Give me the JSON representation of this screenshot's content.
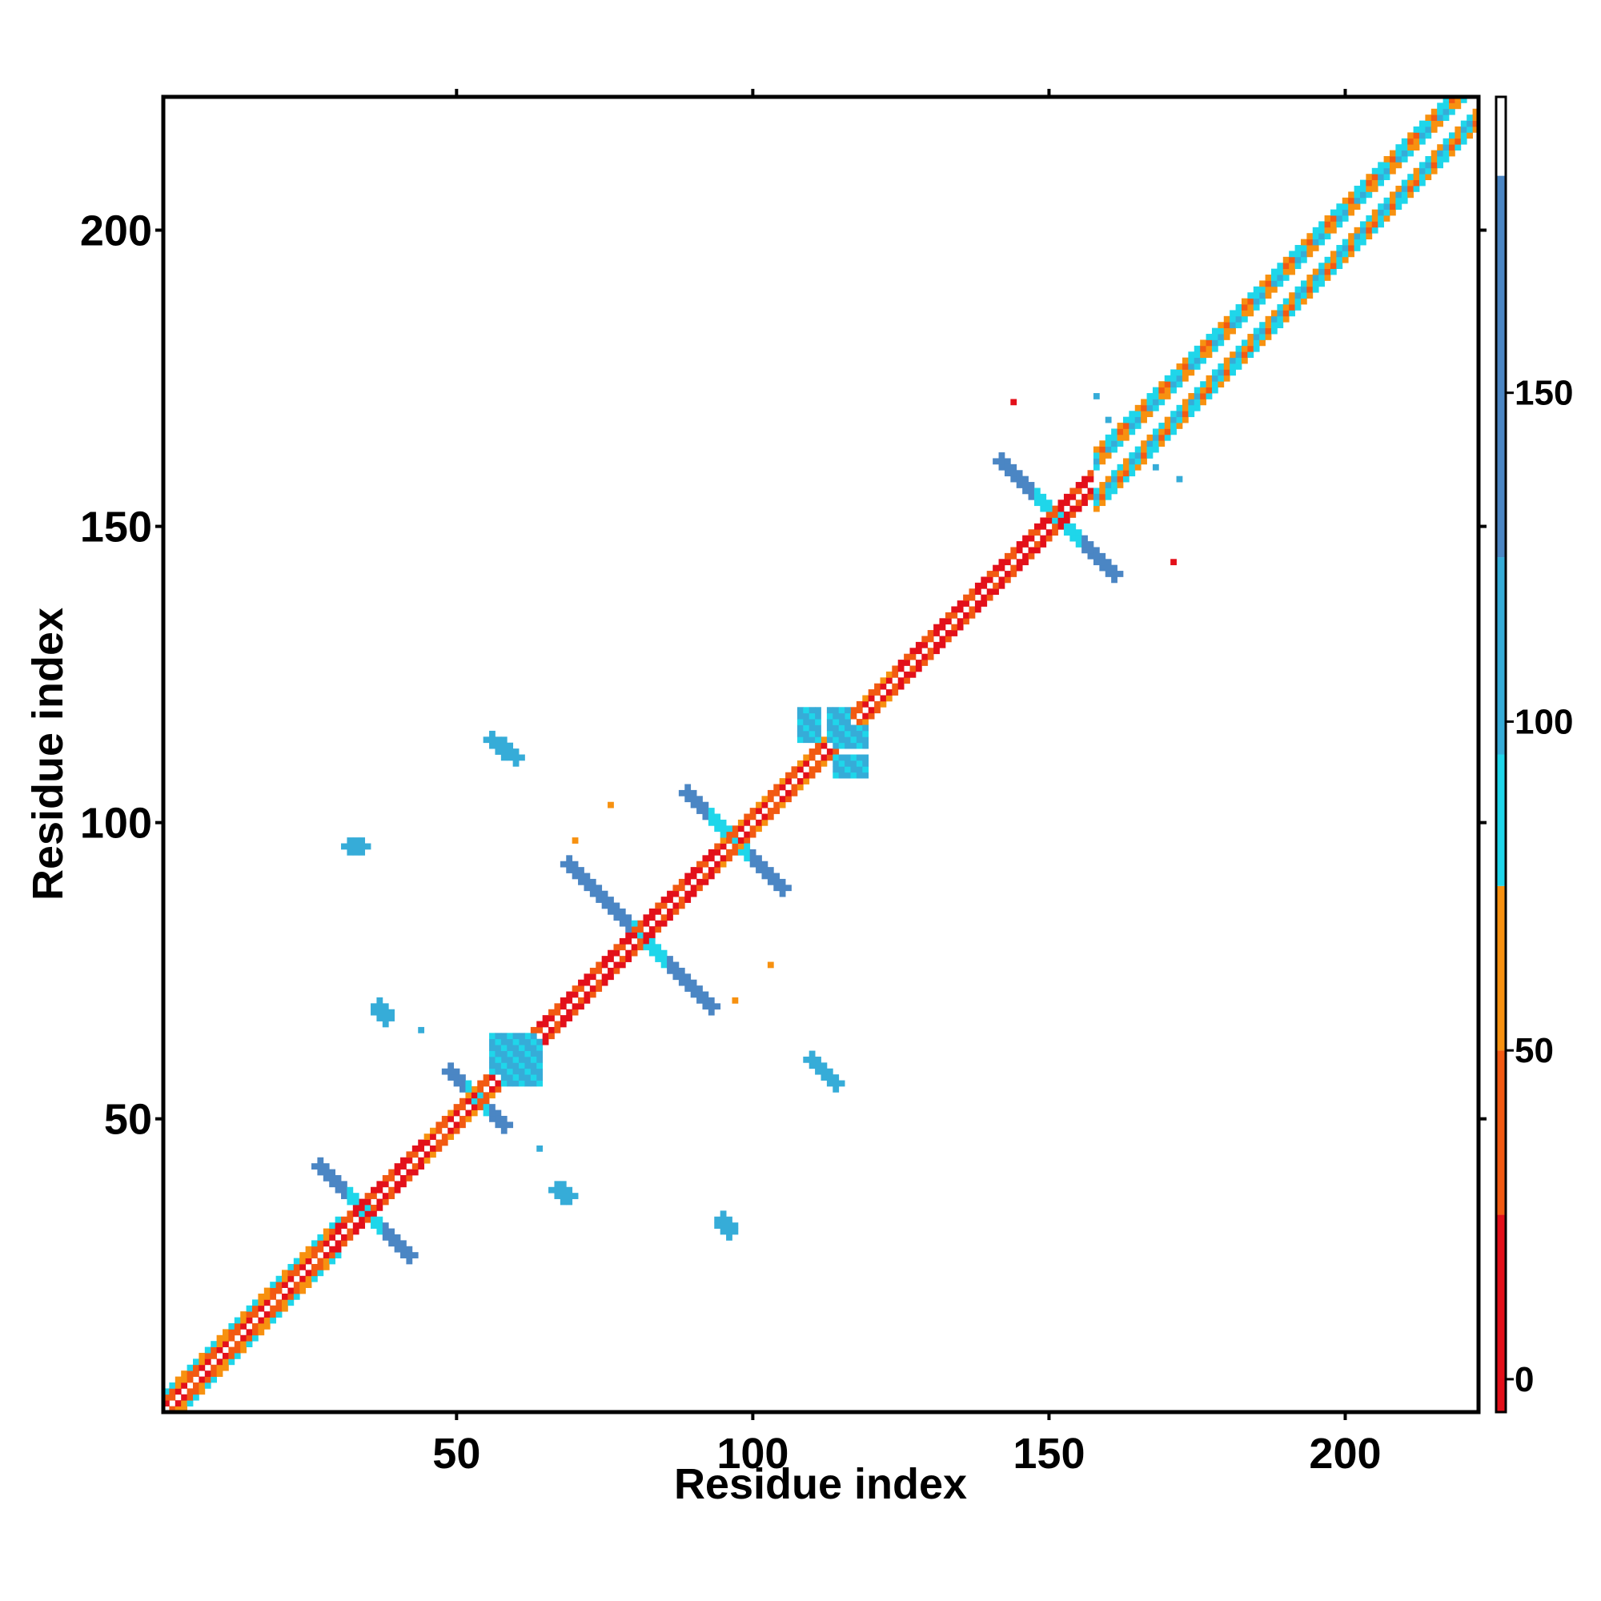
{
  "chart_data": {
    "type": "heatmap",
    "title": "",
    "xlabel": "Residue index",
    "ylabel": "Residue index",
    "xlim": [
      1,
      222
    ],
    "ylim": [
      1,
      222
    ],
    "x_ticks": [
      50,
      100,
      150,
      200
    ],
    "y_ticks": [
      50,
      100,
      150,
      200
    ],
    "grid": false,
    "colorbar": {
      "position": "right",
      "ticks": [
        0,
        50,
        100,
        150
      ],
      "range": [
        -5,
        195
      ],
      "bands": [
        {
          "from": -5,
          "to": 25,
          "color": "#e3101a"
        },
        {
          "from": 25,
          "to": 50,
          "color": "#f25a12"
        },
        {
          "from": 50,
          "to": 75,
          "color": "#f79110"
        },
        {
          "from": 75,
          "to": 95,
          "color": "#1fd6ea"
        },
        {
          "from": 95,
          "to": 125,
          "color": "#36acd8"
        },
        {
          "from": 125,
          "to": 183,
          "color": "#4b86c4"
        },
        {
          "from": 183,
          "to": 195,
          "color": "#ffffff"
        }
      ]
    },
    "diagonal": {
      "start": 1,
      "end": 222,
      "segments": [
        {
          "from": 1,
          "to": 30,
          "halfwidth": 3,
          "profile": "mixed"
        },
        {
          "from": 30,
          "to": 45,
          "halfwidth": 2,
          "profile": "red"
        },
        {
          "from": 45,
          "to": 62,
          "halfwidth": 2,
          "profile": "mixed"
        },
        {
          "from": 62,
          "to": 95,
          "halfwidth": 2,
          "profile": "red"
        },
        {
          "from": 95,
          "to": 125,
          "halfwidth": 2,
          "profile": "mixed"
        },
        {
          "from": 125,
          "to": 158,
          "halfwidth": 2,
          "profile": "red"
        },
        {
          "from": 158,
          "to": 222,
          "halfwidth": 5,
          "profile": "wide"
        }
      ]
    },
    "contact_features": [
      {
        "kind": "antiparallel",
        "x1": 27,
        "y1": 42,
        "x2": 42,
        "y2": 27,
        "halfwidth": 1.3,
        "core": [
          32,
          37
        ]
      },
      {
        "kind": "antiparallel",
        "x1": 49,
        "y1": 58,
        "x2": 58,
        "y2": 49,
        "halfwidth": 1.3,
        "core": [
          52,
          55
        ]
      },
      {
        "kind": "antiparallel",
        "x1": 69,
        "y1": 93,
        "x2": 93,
        "y2": 69,
        "halfwidth": 1.3,
        "core": [
          80,
          85
        ]
      },
      {
        "kind": "antiparallel",
        "x1": 89,
        "y1": 105,
        "x2": 105,
        "y2": 89,
        "halfwidth": 1.3,
        "core": [
          93,
          99
        ]
      },
      {
        "kind": "antiparallel",
        "x1": 142,
        "y1": 161,
        "x2": 161,
        "y2": 142,
        "halfwidth": 1.3,
        "core": [
          148,
          155
        ]
      },
      {
        "kind": "block",
        "x1": 108,
        "y1": 114,
        "x2": 111,
        "y2": 119
      },
      {
        "kind": "block",
        "x1": 113,
        "y1": 114,
        "x2": 116,
        "y2": 119
      },
      {
        "kind": "block",
        "x1": 56,
        "y1": 58,
        "x2": 60,
        "y2": 64
      },
      {
        "kind": "block",
        "x1": 61,
        "y1": 58,
        "x2": 63,
        "y2": 64
      },
      {
        "kind": "parallel",
        "x1": 56,
        "y1": 114,
        "x2": 60,
        "y2": 111
      },
      {
        "kind": "parallel",
        "x1": 110,
        "y1": 60,
        "x2": 114,
        "y2": 56
      },
      {
        "kind": "parallel",
        "x1": 32,
        "y1": 96,
        "x2": 34,
        "y2": 96
      },
      {
        "kind": "parallel",
        "x1": 37,
        "y1": 69,
        "x2": 38,
        "y2": 67
      },
      {
        "kind": "parallel",
        "x1": 67,
        "y1": 38,
        "x2": 69,
        "y2": 37
      },
      {
        "kind": "parallel",
        "x1": 95,
        "y1": 33,
        "x2": 96,
        "y2": 31
      }
    ],
    "scattered_points": [
      {
        "x": 44,
        "y": 65,
        "value": 105
      },
      {
        "x": 64,
        "y": 45,
        "value": 105
      },
      {
        "x": 76,
        "y": 103,
        "value": 60
      },
      {
        "x": 70,
        "y": 97,
        "value": 60
      },
      {
        "x": 97,
        "y": 70,
        "value": 60
      },
      {
        "x": 103,
        "y": 76,
        "value": 60
      },
      {
        "x": 144,
        "y": 171,
        "value": 15
      },
      {
        "x": 171,
        "y": 144,
        "value": 15
      },
      {
        "x": 158,
        "y": 172,
        "value": 105
      },
      {
        "x": 160,
        "y": 168,
        "value": 105
      },
      {
        "x": 168,
        "y": 160,
        "value": 105
      },
      {
        "x": 172,
        "y": 158,
        "value": 105
      }
    ]
  }
}
